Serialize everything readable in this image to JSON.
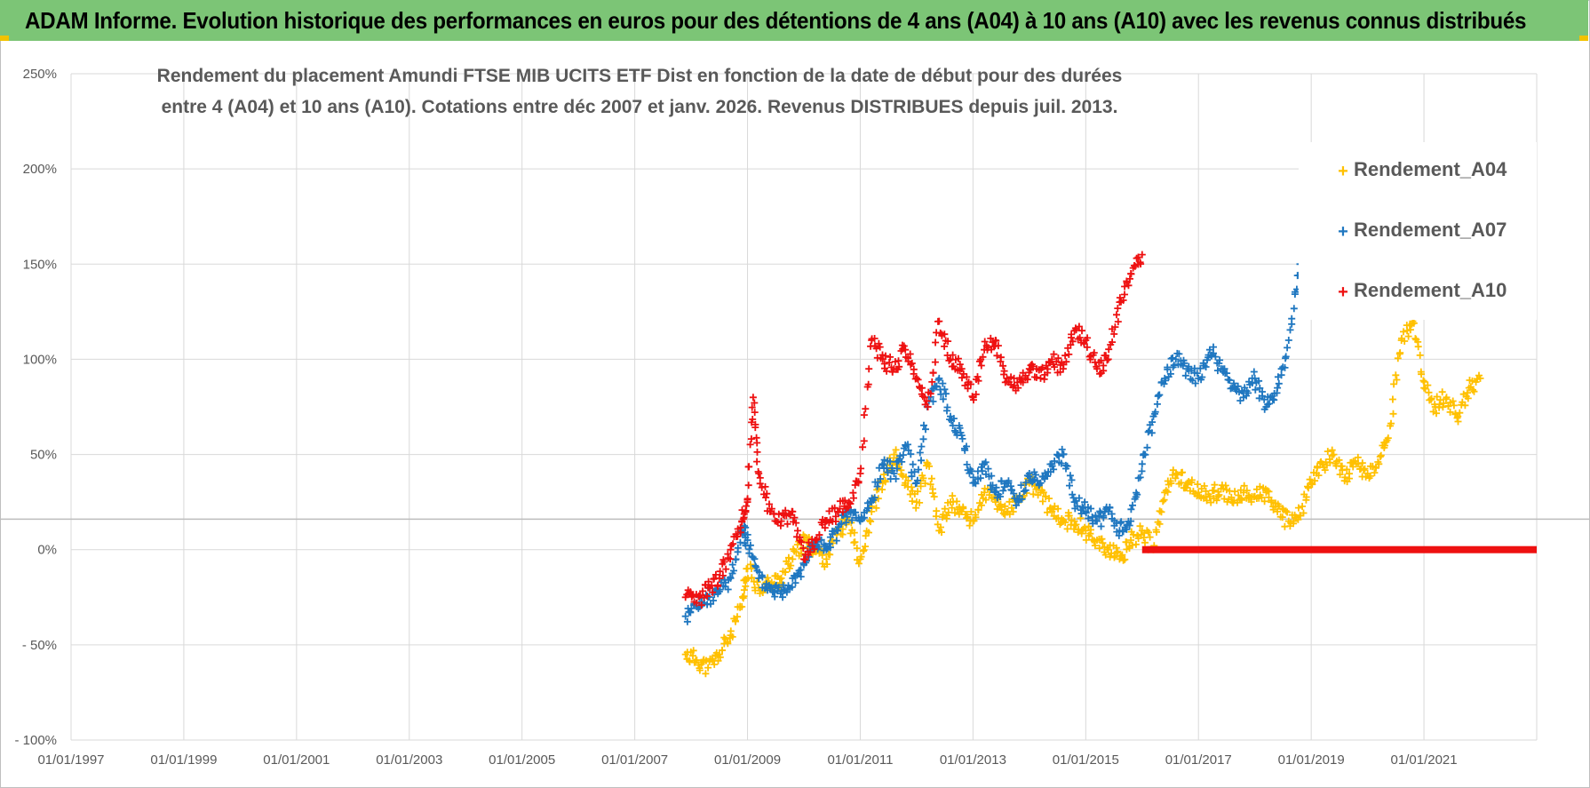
{
  "banner": {
    "title": "ADAM Informe. Evolution historique des performances en euros pour des détentions de 4 ans (A04) à 10 ans (A10) avec les revenus connus distribués"
  },
  "colors": {
    "banner_bg": "#7cc576",
    "A04": "#ffc000",
    "A07": "#1f77c0",
    "A10": "#ee1111",
    "grid": "#d9d9d9",
    "text": "#595959"
  },
  "chart_data": {
    "type": "scatter",
    "title_lines": [
      "Rendement du placement Amundi FTSE MIB UCITS ETF Dist en fonction de la date de début pour des durées",
      "entre 4 (A04) et 10 ans (A10).  Cotations entre déc 2007 et janv. 2026. Revenus DISTRIBUES depuis juil. 2013."
    ],
    "xlim": [
      1997.0,
      2023.0
    ],
    "ylim": [
      -100,
      250
    ],
    "x_ticks": [
      "01/01/1997",
      "01/01/1999",
      "01/01/2001",
      "01/01/2003",
      "01/01/2005",
      "01/01/2007",
      "01/01/2009",
      "01/01/2011",
      "01/01/2013",
      "01/01/2015",
      "01/01/2017",
      "01/01/2019",
      "01/01/2021"
    ],
    "y_ticks": [
      "250%",
      "200%",
      "150%",
      "100%",
      "50%",
      "0%",
      "- 50%",
      "- 100%"
    ],
    "y_tick_values": [
      250,
      200,
      150,
      100,
      50,
      0,
      -50,
      -100
    ],
    "reference_line_y": 16,
    "legend": [
      "Rendement_A04",
      "Rendement_A07",
      "Rendement_A10"
    ],
    "legend_position": "top-right",
    "series": [
      {
        "name": "Rendement_A04",
        "x": [
          2007.9,
          2008.1,
          2008.3,
          2008.5,
          2008.7,
          2008.9,
          2009.0,
          2009.2,
          2009.4,
          2009.6,
          2009.8,
          2010.0,
          2010.2,
          2010.4,
          2010.6,
          2010.8,
          2011.0,
          2011.2,
          2011.4,
          2011.6,
          2011.8,
          2012.0,
          2012.2,
          2012.4,
          2012.6,
          2012.8,
          2013.0,
          2013.2,
          2013.4,
          2013.6,
          2013.8,
          2014.0,
          2014.2,
          2014.4,
          2014.6,
          2014.8,
          2015.0,
          2015.2,
          2015.4,
          2015.6,
          2015.8,
          2016.0,
          2016.2,
          2016.4,
          2016.6,
          2016.8,
          2017.0,
          2017.2,
          2017.4,
          2017.6,
          2017.8,
          2018.0,
          2018.2,
          2018.4,
          2018.6,
          2018.8,
          2019.0,
          2019.2,
          2019.4,
          2019.6,
          2019.8,
          2020.0,
          2020.2,
          2020.4,
          2020.6,
          2020.8,
          2021.0,
          2021.2,
          2021.4,
          2021.6,
          2021.8,
          2022.0
        ],
        "values": [
          -55,
          -58,
          -62,
          -55,
          -45,
          -30,
          -10,
          -20,
          -18,
          -15,
          -5,
          5,
          0,
          -5,
          10,
          15,
          -5,
          20,
          35,
          50,
          35,
          25,
          45,
          10,
          25,
          20,
          15,
          30,
          25,
          20,
          25,
          35,
          30,
          20,
          15,
          15,
          10,
          5,
          0,
          -5,
          5,
          10,
          0,
          30,
          40,
          35,
          30,
          28,
          32,
          25,
          30,
          28,
          30,
          20,
          15,
          18,
          35,
          45,
          50,
          38,
          45,
          40,
          45,
          65,
          110,
          120,
          85,
          75,
          80,
          70,
          85,
          90
        ]
      },
      {
        "name": "Rendement_A07",
        "x": [
          2007.9,
          2008.1,
          2008.3,
          2008.5,
          2008.7,
          2008.9,
          2009.0,
          2009.2,
          2009.4,
          2009.6,
          2009.8,
          2010.0,
          2010.2,
          2010.4,
          2010.6,
          2010.8,
          2011.0,
          2011.2,
          2011.4,
          2011.6,
          2011.8,
          2012.0,
          2012.2,
          2012.4,
          2012.6,
          2012.8,
          2013.0,
          2013.2,
          2013.4,
          2013.6,
          2013.8,
          2014.0,
          2014.2,
          2014.4,
          2014.6,
          2014.8,
          2015.0,
          2015.2,
          2015.4,
          2015.6,
          2015.8,
          2016.0,
          2016.2,
          2016.4,
          2016.6,
          2016.8,
          2017.0,
          2017.2,
          2017.4,
          2017.6,
          2017.8,
          2018.0,
          2018.2,
          2018.4,
          2018.6,
          2018.8
        ],
        "values": [
          -35,
          -30,
          -25,
          -22,
          -15,
          10,
          5,
          -15,
          -20,
          -22,
          -15,
          -8,
          5,
          0,
          10,
          20,
          15,
          25,
          45,
          40,
          55,
          35,
          75,
          90,
          70,
          60,
          35,
          45,
          30,
          35,
          25,
          40,
          35,
          45,
          50,
          25,
          20,
          15,
          20,
          10,
          15,
          45,
          70,
          90,
          100,
          95,
          90,
          105,
          95,
          85,
          80,
          90,
          75,
          85,
          110,
          150
        ]
      },
      {
        "name": "Rendement_A10",
        "x": [
          2007.9,
          2008.1,
          2008.3,
          2008.5,
          2008.7,
          2008.9,
          2009.0,
          2009.1,
          2009.2,
          2009.4,
          2009.6,
          2009.8,
          2010.0,
          2010.2,
          2010.4,
          2010.6,
          2010.8,
          2011.0,
          2011.2,
          2011.4,
          2011.6,
          2011.8,
          2012.0,
          2012.2,
          2012.4,
          2012.6,
          2012.8,
          2013.0,
          2013.2,
          2013.4,
          2013.6,
          2013.8,
          2014.0,
          2014.2,
          2014.4,
          2014.6,
          2014.8,
          2015.0,
          2015.2,
          2015.4,
          2015.6,
          2015.8,
          2016.0
        ],
        "values": [
          -25,
          -28,
          -20,
          -15,
          0,
          15,
          25,
          80,
          40,
          20,
          15,
          20,
          -5,
          5,
          15,
          20,
          25,
          40,
          110,
          100,
          95,
          105,
          90,
          75,
          120,
          100,
          95,
          80,
          105,
          110,
          90,
          85,
          95,
          90,
          100,
          95,
          115,
          110,
          95,
          100,
          130,
          145,
          155
        ],
        "flat_zero_from": 2016.0,
        "flat_zero_to": 2023.0
      }
    ]
  }
}
